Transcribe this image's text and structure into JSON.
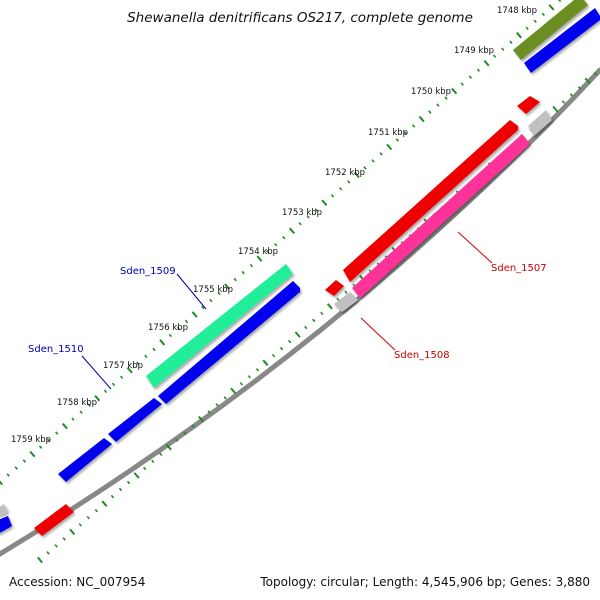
{
  "title": "Shewanella denitrificans OS217, complete genome",
  "footer": {
    "accession": "Accession: NC_007954",
    "summary": "Topology: circular; Length: 4,545,906 bp; Genes: 3,880"
  },
  "tick_labels": [
    "1748 kbp",
    "1749 kbp",
    "1750 kbp",
    "1751 kbp",
    "1752 kbp",
    "1753 kbp",
    "1754 kbp",
    "1755 kbp",
    "1756 kbp",
    "1757 kbp",
    "1758 kbp",
    "1759 kbp"
  ],
  "gene_labels": [
    {
      "text": "Sden_1509",
      "color": "#0000aa"
    },
    {
      "text": "Sden_1510",
      "color": "#0000aa"
    },
    {
      "text": "Sden_1507",
      "color": "#cc0000"
    },
    {
      "text": "Sden_1508",
      "color": "#cc0000"
    }
  ],
  "colors": {
    "forward_cds": "#0000ee",
    "reverse_cds": "#ee0000",
    "highlight_forward": "#22ee99",
    "highlight_reverse": "#ff3399",
    "olive_feature": "#6b8e23",
    "gray_feature": "#c0c0c0",
    "backbone": "#888888",
    "tick_marks": "#228b22"
  }
}
